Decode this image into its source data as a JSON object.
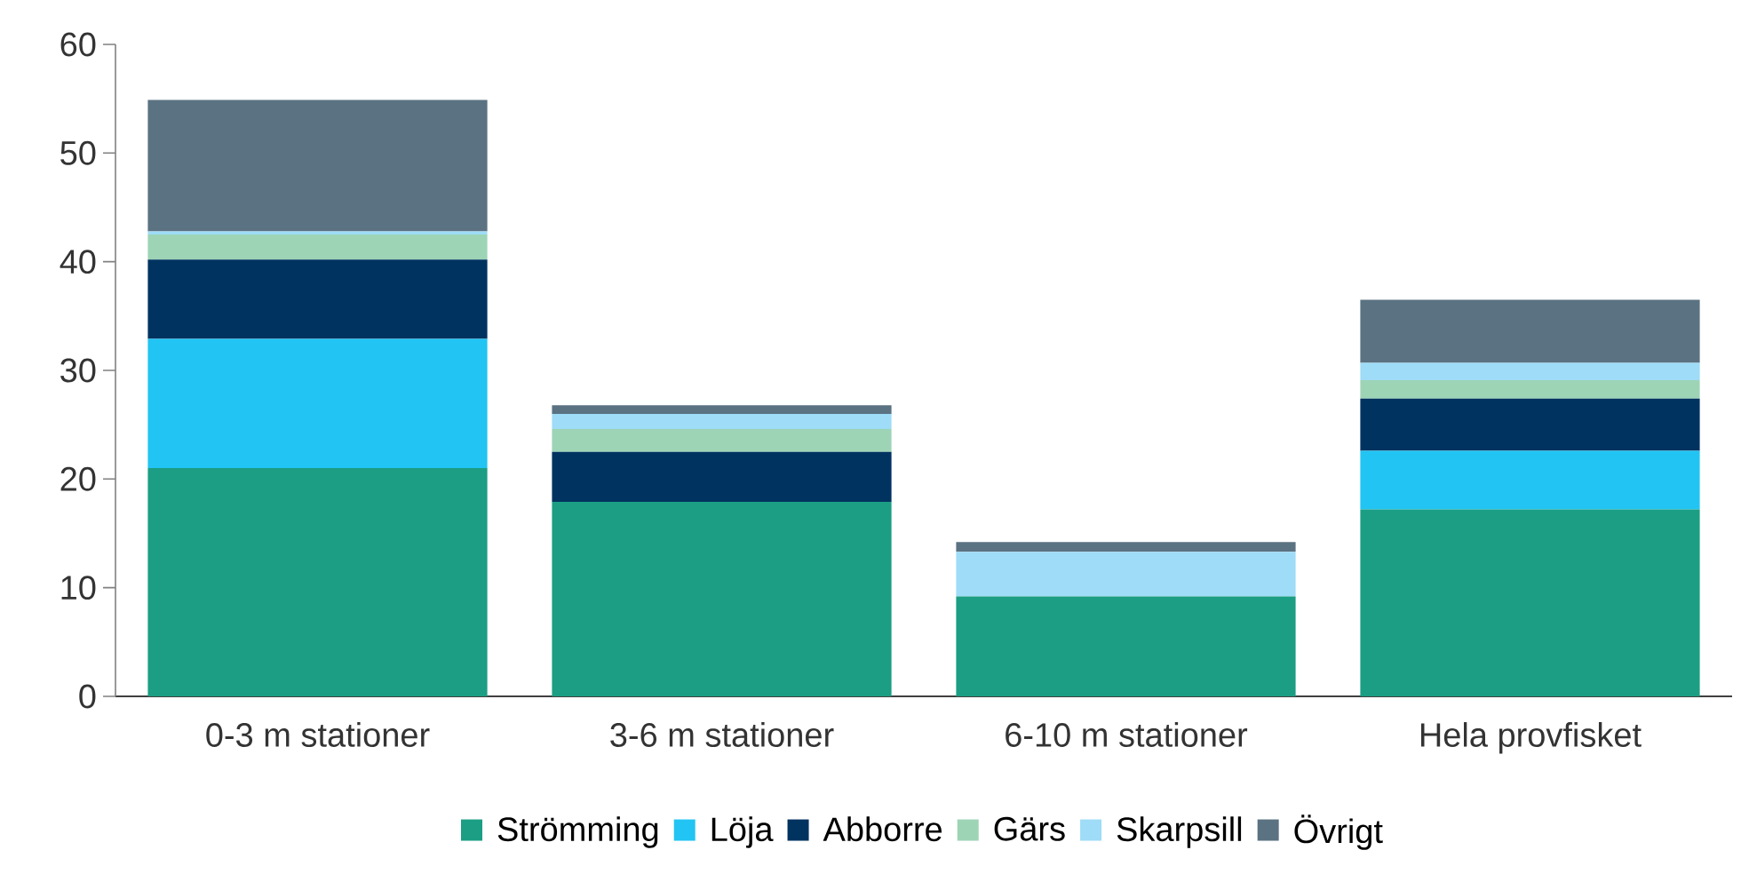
{
  "chart_data": {
    "type": "bar",
    "stacked": true,
    "categories": [
      "0-3 m stationer",
      "3-6 m stationer",
      "6-10 m stationer",
      "Hela provfisket"
    ],
    "series": [
      {
        "name": "Strömming",
        "color": "#1b9e83",
        "values": [
          21.0,
          17.9,
          9.2,
          17.2
        ]
      },
      {
        "name": "Löja",
        "color": "#21c4f3",
        "values": [
          11.9,
          0,
          0,
          5.4
        ]
      },
      {
        "name": "Abborre",
        "color": "#003360",
        "values": [
          7.3,
          4.6,
          0,
          4.8
        ]
      },
      {
        "name": "Gärs",
        "color": "#9dd4b6",
        "values": [
          2.3,
          2.1,
          0,
          1.7
        ]
      },
      {
        "name": "Skarpsill",
        "color": "#9edcf7",
        "values": [
          0.3,
          1.4,
          4.1,
          1.6
        ]
      },
      {
        "name": "Övrigt",
        "color": "#5b7282",
        "values": [
          12.1,
          0.8,
          0.9,
          5.8
        ]
      }
    ],
    "ylim": [
      0,
      60
    ],
    "yticks": [
      0,
      10,
      20,
      30,
      40,
      50,
      60
    ],
    "grid": false,
    "legend": "bottom"
  }
}
